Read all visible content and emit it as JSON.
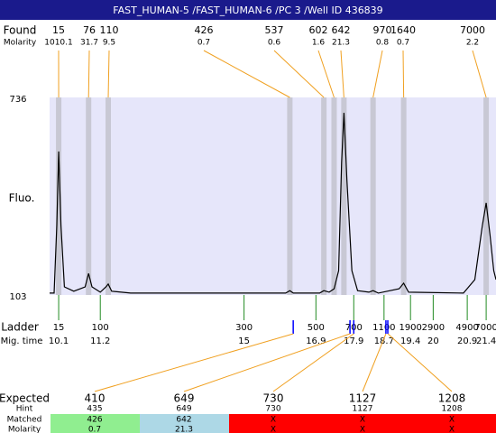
{
  "header": {
    "title": "FAST_HUMAN-5 /FAST_HUMAN-6 /PC 3 /Well ID 436839"
  },
  "found": {
    "label": "Found",
    "molarity_label": "Molarity",
    "peaks": [
      {
        "size": 15,
        "molarity": 1010.1,
        "time": 10.1
      },
      {
        "size": 76,
        "molarity": 31.7,
        "time": 10.89
      },
      {
        "size": 110,
        "molarity": 9.5,
        "time": 11.41
      },
      {
        "size": 426,
        "molarity": 0.7,
        "time": 16.21
      },
      {
        "size": 537,
        "molarity": 0.6,
        "time": 17.11
      },
      {
        "size": 602,
        "molarity": 1.6,
        "time": 17.38
      },
      {
        "size": 642,
        "molarity": 21.3,
        "time": 17.64
      },
      {
        "size": 970,
        "molarity": 0.8,
        "time": 18.41
      },
      {
        "size": 1640,
        "molarity": 0.7,
        "time": 19.22
      },
      {
        "size": 7000,
        "molarity": 2.2,
        "time": 21.4
      }
    ]
  },
  "chart_data": {
    "type": "line",
    "ylabel": "Fluo.",
    "ylim": [
      103,
      736
    ],
    "yticks": [
      103,
      736
    ],
    "xlim": [
      9.86,
      21.66
    ],
    "color": "#000000",
    "fill": "#e6e6fa",
    "x": [
      9.86,
      9.98,
      10.05,
      10.1,
      10.16,
      10.25,
      10.5,
      10.8,
      10.89,
      10.98,
      11.2,
      11.35,
      11.41,
      11.5,
      12,
      16.1,
      16.21,
      16.3,
      17.0,
      17.11,
      17.25,
      17.38,
      17.5,
      17.58,
      17.64,
      17.72,
      17.85,
      18.0,
      18.3,
      18.41,
      18.55,
      19.1,
      19.22,
      19.35,
      20.8,
      21.1,
      21.3,
      21.4,
      21.5,
      21.6,
      21.66
    ],
    "values": [
      109,
      109,
      326,
      563,
      326,
      129,
      115,
      129,
      172,
      129,
      112,
      129,
      138,
      115,
      109,
      109,
      117,
      109,
      109,
      117,
      112,
      123,
      181,
      528,
      687,
      470,
      181,
      117,
      112,
      117,
      109,
      123,
      141,
      112,
      109,
      152,
      326,
      398,
      297,
      181,
      152
    ]
  },
  "ladder": {
    "label": "Ladder",
    "time_label": "Mig. time",
    "items": [
      {
        "size": 15,
        "time": 10.1
      },
      {
        "size": 100,
        "time": 11.2
      },
      {
        "size": 300,
        "time": 15
      },
      {
        "size": 500,
        "time": 16.9
      },
      {
        "size": 700,
        "time": 17.9
      },
      {
        "size": 1100,
        "time": 18.7
      },
      {
        "size": 1900,
        "time": 19.4
      },
      {
        "size": 2900,
        "time": 20
      },
      {
        "size": 4900,
        "time": 20.9
      },
      {
        "size": 7000,
        "time": 21.4
      }
    ]
  },
  "expected": {
    "labels": [
      "Expected",
      "Hint",
      "Matched",
      "Molarity"
    ],
    "items": [
      {
        "expected": 410,
        "hint": 435,
        "matched": 426,
        "molarity": 0.7,
        "color": "#90ee90",
        "time": 16.3
      },
      {
        "expected": 649,
        "hint": 649,
        "matched": 642,
        "molarity": 21.3,
        "color": "#add8e6",
        "time": 17.8
      },
      {
        "expected": 730,
        "hint": 730,
        "matched": "X",
        "molarity": "X",
        "color": "#ff0000",
        "time": 17.9
      },
      {
        "expected": 1127,
        "hint": 1127,
        "matched": "X",
        "molarity": "X",
        "color": "#ff0000",
        "time": 18.75
      },
      {
        "expected": 1208,
        "hint": 1208,
        "matched": "X",
        "molarity": "X",
        "color": "#ff0000",
        "time": 18.8
      }
    ]
  }
}
